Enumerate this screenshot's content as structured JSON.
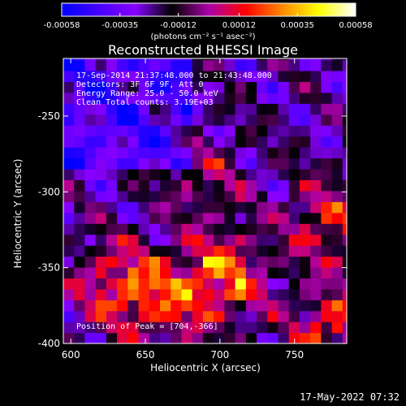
{
  "colorbar": {
    "ticks": [
      "-0.00058",
      "-0.00035",
      "-0.00012",
      "0.00012",
      "0.00035",
      "0.00058"
    ],
    "values": [
      -0.00058,
      -0.00035,
      -0.00012,
      0.00012,
      0.00035,
      0.00058
    ],
    "range": [
      -0.00058,
      0.00058
    ],
    "units_label": "(photons cm⁻² s⁻¹ asec⁻²)",
    "colormap": [
      "#0000ff",
      "#4400ff",
      "#8800ff",
      "#000000",
      "#aa00aa",
      "#ff0000",
      "#ff8800",
      "#ffff00",
      "#ffffff"
    ]
  },
  "chart_data": {
    "type": "heatmap",
    "title": "Reconstructed RHESSI Image",
    "xlabel": "Heliocentric X (arcsec)",
    "ylabel": "Heliocentric Y (arcsec)",
    "xlim": [
      595,
      785
    ],
    "ylim": [
      -400,
      -212
    ],
    "x_ticks": [
      600,
      650,
      700,
      750
    ],
    "y_ticks": [
      -250,
      -300,
      -350,
      -400
    ],
    "info_lines": [
      "17-Sep-2014 21:37:48.000 to 21:43:48.000",
      "Detectors: 3F 6F 9F, Att 0",
      "Energy Range: 25.0 - 50.0 keV",
      "Clean    Total counts: 3.19E+03"
    ],
    "peak_label": "Position of Peak = [704,-366]",
    "peak": [
      704,
      -366
    ],
    "sources": [
      {
        "x": 702,
        "y": -356,
        "value": 0.00058
      },
      {
        "x": 630,
        "y": -360,
        "value": 0.00045
      },
      {
        "x": 772,
        "y": -320,
        "value": 0.00042
      },
      {
        "x": 778,
        "y": -390,
        "value": 0.0005
      },
      {
        "x": 662,
        "y": -372,
        "value": 0.0004
      },
      {
        "x": 690,
        "y": -292,
        "value": 0.00025
      }
    ]
  },
  "footer": {
    "timestamp": "17-May-2022 07:32"
  }
}
